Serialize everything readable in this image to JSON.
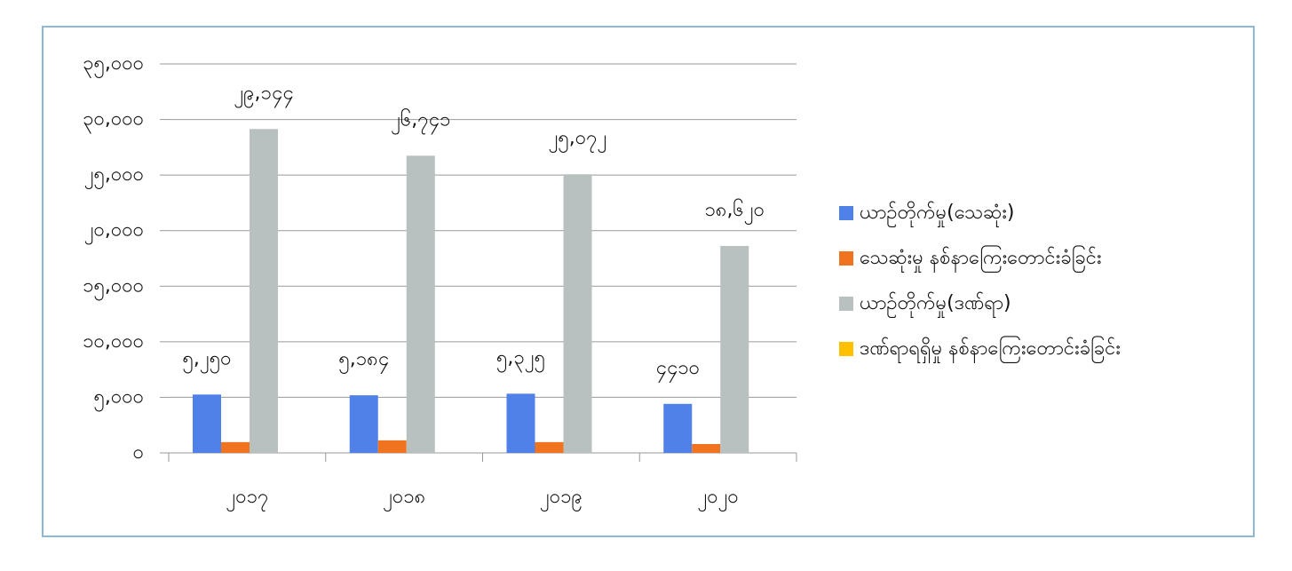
{
  "chart_data": {
    "type": "bar",
    "categories": [
      "၂၀၁၇",
      "၂၀၁၈",
      "၂၀၁၉",
      "၂၀၂၀"
    ],
    "series": [
      {
        "name": "ယာဉ်တိုက်မှု(သေဆုံး)",
        "color": "#4f81e8",
        "values": [
          5250,
          5184,
          5325,
          4410
        ],
        "value_labels": [
          "၅,၂၅၀",
          "၅,၁၈၄",
          "၅,၃၂၅",
          "၄၄၁၀"
        ]
      },
      {
        "name": "သေဆုံးမှု နစ်နာကြေးတောင်းခံခြင်း",
        "color": "#f0741f",
        "values": [
          970,
          1130,
          970,
          800
        ]
      },
      {
        "name": "ယာဉ်တိုက်မှု(ဒဏ်ရာ)",
        "color": "#b8c0c0",
        "values": [
          29144,
          26741,
          25072,
          18620
        ],
        "value_labels": [
          "၂၉,၁၄၄",
          "၂၆,၇၄၁",
          "၂၅,၀၇၂",
          "၁၈,၆၂၀"
        ]
      },
      {
        "name": "ဒဏ်ရာရရှိမှု နစ်နာကြေးတောင်းခံခြင်း",
        "color": "#ffc000",
        "values": [
          0,
          0,
          0,
          0
        ]
      }
    ],
    "ylim": [
      0,
      35000
    ],
    "yticks": [
      {
        "value": 0,
        "label": "၀"
      },
      {
        "value": 5000,
        "label": "၅,၀၀၀"
      },
      {
        "value": 10000,
        "label": "၁၀,၀၀၀"
      },
      {
        "value": 15000,
        "label": "၁၅,၀၀၀"
      },
      {
        "value": 20000,
        "label": "၂၀,၀၀၀"
      },
      {
        "value": 25000,
        "label": "၂၅,၀၀၀"
      },
      {
        "value": 30000,
        "label": "၃၀,၀၀၀"
      },
      {
        "value": 35000,
        "label": "၃၅,၀၀၀"
      }
    ],
    "grid": true,
    "legend": "right"
  }
}
